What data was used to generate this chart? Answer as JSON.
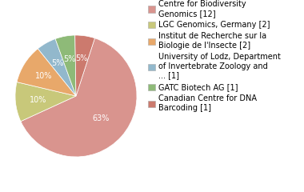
{
  "labels": [
    "Centre for Biodiversity\nGenomics [12]",
    "LGC Genomics, Germany [2]",
    "Institut de Recherche sur la\nBiologie de l'Insecte [2]",
    "University of Lodz, Department\nof Invertebrate Zoology and\n... [1]",
    "GATC Biotech AG [1]",
    "Canadian Centre for DNA\nBarcoding [1]"
  ],
  "values": [
    12,
    2,
    2,
    1,
    1,
    1
  ],
  "colors": [
    "#d9948e",
    "#c8c87a",
    "#e8a86a",
    "#92b8cc",
    "#8eba78",
    "#cc7a6e"
  ],
  "pct_labels": [
    "63%",
    "10%",
    "10%",
    "5%",
    "5%",
    "5%"
  ],
  "background_color": "#ffffff",
  "fontsize": 7,
  "pct_fontsize": 7,
  "startangle": 72
}
